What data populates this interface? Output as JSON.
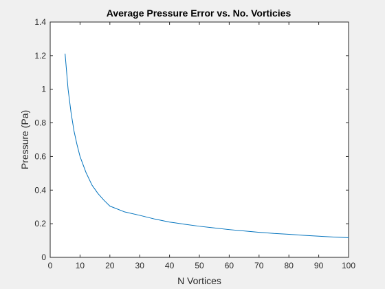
{
  "chart_data": {
    "type": "line",
    "title": "Average Pressure Error vs. No. Vorticies",
    "xlabel": "N Vortices",
    "ylabel": "Pressure (Pa)",
    "xlim": [
      0,
      100
    ],
    "ylim": [
      0,
      1.4
    ],
    "xticks": [
      0,
      10,
      20,
      30,
      40,
      50,
      60,
      70,
      80,
      90,
      100
    ],
    "yticks": [
      0,
      0.2,
      0.4,
      0.6,
      0.8,
      1,
      1.2,
      1.4
    ],
    "xtick_labels": [
      "0",
      "10",
      "20",
      "30",
      "40",
      "50",
      "60",
      "70",
      "80",
      "90",
      "100"
    ],
    "ytick_labels": [
      "0",
      "0.2",
      "0.4",
      "0.6",
      "0.8",
      "1",
      "1.2",
      "1.4"
    ],
    "grid": false,
    "legend": "none",
    "series": [
      {
        "color": "#0072bd",
        "x": [
          5,
          6,
          7,
          8,
          9,
          10,
          12,
          14,
          16,
          18,
          20,
          25,
          30,
          35,
          40,
          45,
          50,
          55,
          60,
          65,
          70,
          75,
          80,
          85,
          90,
          95,
          100
        ],
        "y": [
          1.21,
          1.0,
          0.86,
          0.75,
          0.67,
          0.6,
          0.505,
          0.43,
          0.38,
          0.34,
          0.305,
          0.27,
          0.25,
          0.228,
          0.21,
          0.197,
          0.185,
          0.175,
          0.165,
          0.157,
          0.149,
          0.142,
          0.137,
          0.131,
          0.126,
          0.121,
          0.117
        ]
      }
    ]
  },
  "colors": {
    "figure_background": "#f0f0f0",
    "axes_background": "#ffffff",
    "axis_color": "#262626"
  }
}
